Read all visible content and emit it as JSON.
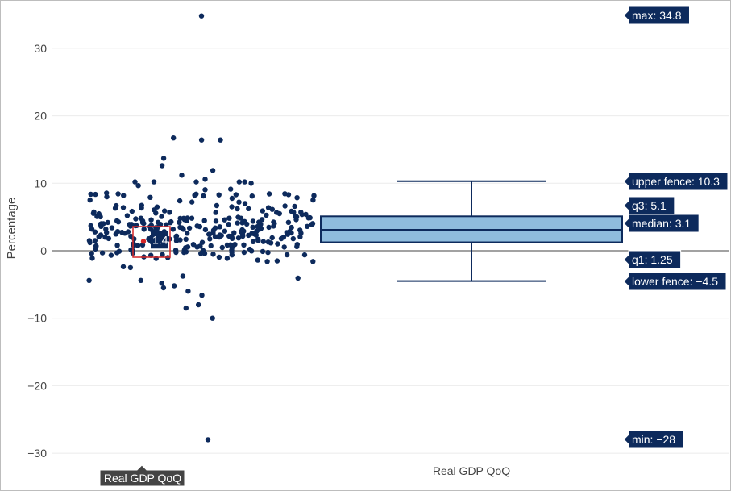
{
  "chart_data": {
    "type": "box",
    "orientation": "vertical",
    "series_name": "Real GDP QoQ",
    "ylabel": "Percentage",
    "ylim": [
      -31.5,
      35.8
    ],
    "yticks": [
      -30,
      -20,
      -10,
      0,
      10,
      20,
      30
    ],
    "grid": true,
    "boxpoints": "all",
    "stats": {
      "max": 34.8,
      "upper_fence": 10.3,
      "q3": 5.1,
      "median": 3.1,
      "q1": 1.25,
      "lower_fence": -4.5,
      "min": -28
    },
    "stat_labels": {
      "max": "max: 34.8",
      "upper_fence": "upper fence: 10.3",
      "q3": "q3: 5.1",
      "median": "median: 3.1",
      "q1": "q1: 1.25",
      "lower_fence": "lower fence: −4.5",
      "min": "min: −28"
    },
    "hovered_point": {
      "value": 1.4,
      "label": "1.4"
    },
    "category_hover_label": "Real GDP QoQ",
    "colors": {
      "points": "#0d2a5c",
      "box_fill": "#8fbcdd",
      "box_line": "#0d2a5c",
      "highlight": "#d62728",
      "hover_bg": "#0d2a5c"
    }
  }
}
